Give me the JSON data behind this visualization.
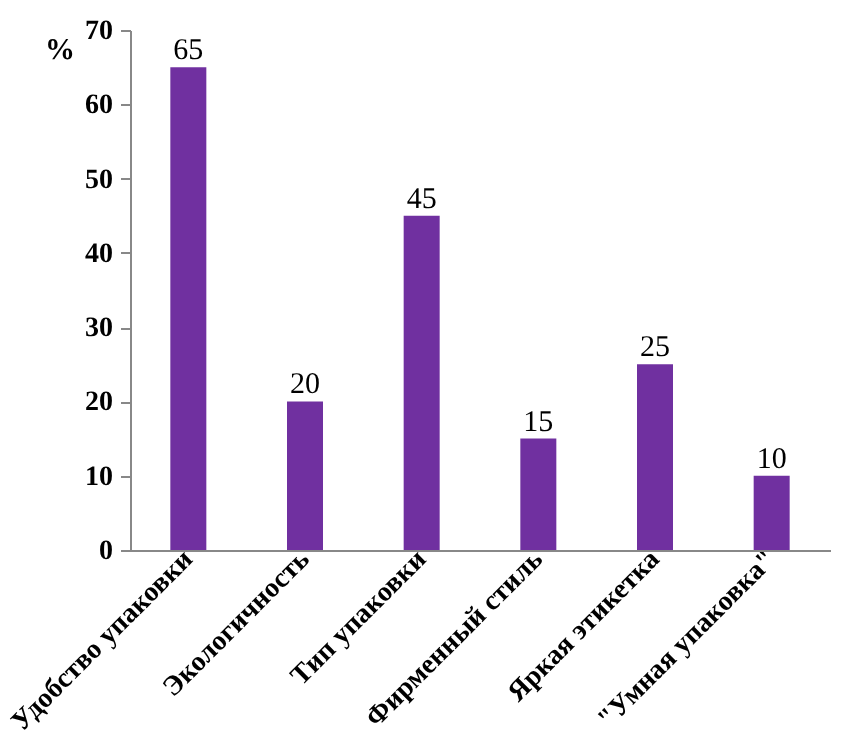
{
  "chart_data": {
    "type": "bar",
    "ylabel": "%",
    "categories": [
      "Удобство упаковки",
      "Экологичность",
      "Тип упаковки",
      "Фирменный стиль",
      "Яркая этикетка",
      "\"Умная упаковка\""
    ],
    "values": [
      65,
      20,
      45,
      15,
      25,
      10
    ],
    "color": "#7030a0",
    "ylim": [
      0,
      70
    ],
    "yticks": [
      0,
      10,
      20,
      30,
      40,
      50,
      60,
      70
    ],
    "grid": false,
    "data_labels": true
  }
}
